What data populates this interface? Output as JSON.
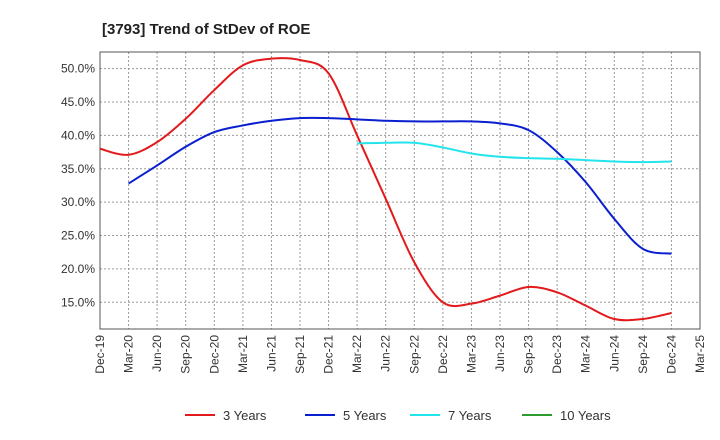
{
  "chart_data": {
    "type": "line",
    "title": "[3793]  Trend of StDev of ROE",
    "xlabel": "",
    "ylabel": "",
    "x_categories": [
      "Dec-19",
      "Mar-20",
      "Jun-20",
      "Sep-20",
      "Dec-20",
      "Mar-21",
      "Jun-21",
      "Sep-21",
      "Dec-21",
      "Mar-22",
      "Jun-22",
      "Sep-22",
      "Dec-22",
      "Mar-23",
      "Jun-23",
      "Sep-23",
      "Dec-23",
      "Mar-24",
      "Jun-24",
      "Sep-24",
      "Dec-24",
      "Mar-25"
    ],
    "y_ticks": [
      "15.0%",
      "20.0%",
      "25.0%",
      "30.0%",
      "35.0%",
      "40.0%",
      "45.0%",
      "50.0%"
    ],
    "y_tick_values": [
      15,
      20,
      25,
      30,
      35,
      40,
      45,
      50
    ],
    "ylim": [
      11,
      52.5
    ],
    "grid": true,
    "legend_position": "bottom",
    "series": [
      {
        "name": "3 Years",
        "color": "#e31a1c",
        "points": [
          [
            0,
            38.0
          ],
          [
            1,
            37.1
          ],
          [
            2,
            39.0
          ],
          [
            3,
            42.5
          ],
          [
            4,
            46.8
          ],
          [
            5,
            50.5
          ],
          [
            6,
            51.5
          ],
          [
            7,
            51.3
          ],
          [
            8,
            49.3
          ],
          [
            9,
            40.0
          ],
          [
            10,
            30.5
          ],
          [
            11,
            21.0
          ],
          [
            12,
            15.0
          ],
          [
            13,
            14.8
          ],
          [
            14,
            16.0
          ],
          [
            15,
            17.3
          ],
          [
            16,
            16.5
          ],
          [
            17,
            14.5
          ],
          [
            18,
            12.5
          ],
          [
            19,
            12.5
          ],
          [
            20,
            13.4
          ]
        ]
      },
      {
        "name": "5 Years",
        "color": "#0a1fcf",
        "points": [
          [
            1,
            32.8
          ],
          [
            2,
            35.5
          ],
          [
            3,
            38.3
          ],
          [
            4,
            40.5
          ],
          [
            5,
            41.5
          ],
          [
            6,
            42.2
          ],
          [
            7,
            42.6
          ],
          [
            8,
            42.6
          ],
          [
            9,
            42.4
          ],
          [
            10,
            42.2
          ],
          [
            11,
            42.1
          ],
          [
            12,
            42.1
          ],
          [
            13,
            42.1
          ],
          [
            14,
            41.8
          ],
          [
            15,
            40.8
          ],
          [
            16,
            37.5
          ],
          [
            17,
            33.0
          ],
          [
            18,
            27.5
          ],
          [
            19,
            23.0
          ],
          [
            20,
            22.3
          ]
        ]
      },
      {
        "name": "7 Years",
        "color": "#22e4ec",
        "points": [
          [
            9,
            38.8
          ],
          [
            10,
            38.9
          ],
          [
            11,
            38.9
          ],
          [
            12,
            38.2
          ],
          [
            13,
            37.3
          ],
          [
            14,
            36.8
          ],
          [
            15,
            36.6
          ],
          [
            16,
            36.5
          ],
          [
            17,
            36.3
          ],
          [
            18,
            36.1
          ],
          [
            19,
            36.0
          ],
          [
            20,
            36.1
          ]
        ]
      },
      {
        "name": "10 Years",
        "color": "#2e9b2e",
        "points": []
      }
    ]
  }
}
